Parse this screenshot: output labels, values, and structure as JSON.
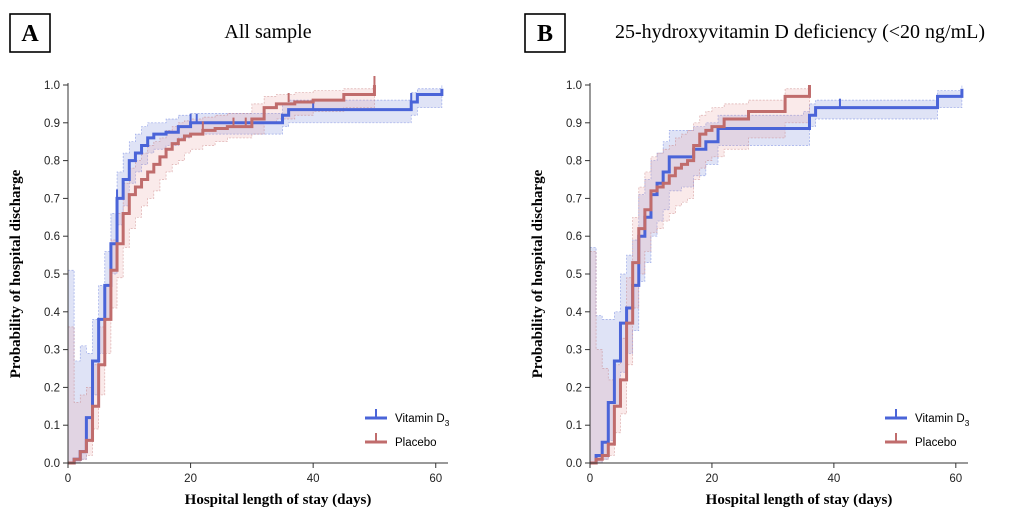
{
  "colors": {
    "vitamin": "#4a64d8",
    "placebo": "#c06c6c",
    "vitamin_band": "#6c7fd8",
    "placebo_band": "#e9a0a0"
  },
  "chart_data": [
    {
      "type": "line",
      "panel_letter": "A",
      "title": "All sample",
      "xlabel": "Hospital length of stay (days)",
      "ylabel": "Probability of hospital discharge",
      "xlim": [
        0,
        62
      ],
      "ylim": [
        0,
        1.0
      ],
      "xticks": [
        "0",
        "20",
        "40",
        "60"
      ],
      "yticks": [
        "0.0",
        "0.1",
        "0.2",
        "0.3",
        "0.4",
        "0.5",
        "0.6",
        "0.7",
        "0.8",
        "0.9",
        "1.0"
      ],
      "legend_position": "bottom-right",
      "series": [
        {
          "name_main": "Vitamin D",
          "name_sub": "3",
          "color_key": "vitamin",
          "x": [
            0,
            1,
            2,
            3,
            4,
            5,
            6,
            7,
            8,
            9,
            10,
            11,
            12,
            13,
            14,
            16,
            18,
            20,
            35,
            36,
            56,
            57,
            61
          ],
          "y": [
            0,
            0.01,
            0.03,
            0.12,
            0.27,
            0.38,
            0.47,
            0.58,
            0.7,
            0.75,
            0.8,
            0.82,
            0.84,
            0.86,
            0.87,
            0.875,
            0.89,
            0.9,
            0.92,
            0.935,
            0.955,
            0.975,
            0.99
          ],
          "lower": [
            0,
            0,
            0.01,
            0.06,
            0.18,
            0.29,
            0.38,
            0.5,
            0.63,
            0.68,
            0.74,
            0.77,
            0.79,
            0.82,
            0.83,
            0.84,
            0.86,
            0.87,
            0.89,
            0.9,
            0.92,
            0.94,
            0.96
          ],
          "upper": [
            0.51,
            0.27,
            0.31,
            0.29,
            0.38,
            0.47,
            0.56,
            0.66,
            0.77,
            0.82,
            0.85,
            0.87,
            0.89,
            0.9,
            0.9,
            0.91,
            0.92,
            0.925,
            0.95,
            0.96,
            0.98,
            0.99,
            1.0
          ],
          "censor_x": [
            8,
            20,
            21,
            40,
            56
          ],
          "censor_y": [
            0.7,
            0.9,
            0.9,
            0.935,
            0.955
          ]
        },
        {
          "name_main": "Placebo",
          "name_sub": "",
          "color_key": "placebo",
          "x": [
            0,
            1,
            2,
            3,
            4,
            5,
            6,
            7,
            8,
            9,
            10,
            11,
            12,
            13,
            14,
            15,
            16,
            17,
            18,
            19,
            20,
            22,
            24,
            26,
            30,
            32,
            34,
            37,
            40,
            45,
            50
          ],
          "y": [
            0,
            0.01,
            0.03,
            0.06,
            0.15,
            0.26,
            0.38,
            0.51,
            0.58,
            0.66,
            0.71,
            0.73,
            0.75,
            0.77,
            0.79,
            0.81,
            0.83,
            0.845,
            0.855,
            0.865,
            0.87,
            0.88,
            0.885,
            0.89,
            0.91,
            0.94,
            0.95,
            0.955,
            0.96,
            0.975,
            1.0
          ],
          "lower": [
            0,
            0,
            0.01,
            0.02,
            0.09,
            0.18,
            0.29,
            0.41,
            0.49,
            0.57,
            0.62,
            0.65,
            0.68,
            0.7,
            0.72,
            0.75,
            0.77,
            0.79,
            0.8,
            0.82,
            0.83,
            0.84,
            0.85,
            0.86,
            0.87,
            0.9,
            0.91,
            0.92,
            0.93,
            0.94,
            0.96
          ],
          "upper": [
            0.36,
            0.16,
            0.18,
            0.2,
            0.26,
            0.36,
            0.47,
            0.59,
            0.66,
            0.74,
            0.78,
            0.8,
            0.82,
            0.84,
            0.85,
            0.86,
            0.88,
            0.89,
            0.9,
            0.905,
            0.91,
            0.915,
            0.92,
            0.925,
            0.95,
            0.97,
            0.975,
            0.98,
            0.985,
            0.99,
            1.0
          ],
          "censor_x": [
            22,
            27,
            29,
            36,
            50
          ],
          "censor_y": [
            0.88,
            0.89,
            0.89,
            0.955,
            1.0
          ]
        }
      ]
    },
    {
      "type": "line",
      "panel_letter": "B",
      "title": "25-hydroxyvitamin D deficiency (<20 ng/mL)",
      "xlabel": "Hospital length of stay (days)",
      "ylabel": "Probability of hospital discharge",
      "xlim": [
        0,
        62
      ],
      "ylim": [
        0,
        1.0
      ],
      "xticks": [
        "0",
        "20",
        "40",
        "60"
      ],
      "yticks": [
        "0.0",
        "0.1",
        "0.2",
        "0.3",
        "0.4",
        "0.5",
        "0.6",
        "0.7",
        "0.8",
        "0.9",
        "1.0"
      ],
      "legend_position": "bottom-right",
      "series": [
        {
          "name_main": "Vitamin D",
          "name_sub": "3",
          "color_key": "vitamin",
          "x": [
            0,
            1,
            2,
            3,
            4,
            5,
            6,
            7,
            8,
            9,
            10,
            11,
            12,
            13,
            15,
            17,
            19,
            21,
            35,
            36,
            37,
            57,
            61
          ],
          "y": [
            0,
            0.02,
            0.055,
            0.16,
            0.27,
            0.37,
            0.41,
            0.47,
            0.6,
            0.65,
            0.71,
            0.74,
            0.77,
            0.81,
            0.81,
            0.83,
            0.85,
            0.885,
            0.885,
            0.92,
            0.94,
            0.97,
            0.99
          ],
          "lower": [
            0,
            0,
            0.01,
            0.06,
            0.15,
            0.24,
            0.29,
            0.35,
            0.48,
            0.53,
            0.6,
            0.64,
            0.67,
            0.72,
            0.73,
            0.76,
            0.79,
            0.84,
            0.84,
            0.89,
            0.91,
            0.94,
            0.96
          ],
          "upper": [
            0.57,
            0.39,
            0.38,
            0.38,
            0.4,
            0.5,
            0.55,
            0.59,
            0.71,
            0.75,
            0.8,
            0.82,
            0.85,
            0.88,
            0.88,
            0.89,
            0.9,
            0.92,
            0.93,
            0.95,
            0.96,
            0.985,
            1.0
          ],
          "censor_x": [
            41
          ],
          "censor_y": [
            0.94
          ]
        },
        {
          "name_main": "Placebo",
          "name_sub": "",
          "color_key": "placebo",
          "x": [
            0,
            1,
            2,
            3,
            4,
            5,
            6,
            7,
            8,
            9,
            10,
            11,
            12,
            13,
            14,
            15,
            16,
            17,
            18,
            19,
            20,
            22,
            26,
            32,
            36
          ],
          "y": [
            0,
            0.01,
            0.02,
            0.05,
            0.15,
            0.22,
            0.37,
            0.53,
            0.62,
            0.67,
            0.72,
            0.73,
            0.74,
            0.76,
            0.78,
            0.79,
            0.8,
            0.84,
            0.87,
            0.88,
            0.89,
            0.91,
            0.93,
            0.97,
            1.0
          ],
          "lower": [
            0,
            0,
            0.01,
            0.02,
            0.08,
            0.13,
            0.26,
            0.41,
            0.5,
            0.56,
            0.61,
            0.62,
            0.64,
            0.66,
            0.68,
            0.69,
            0.7,
            0.75,
            0.78,
            0.8,
            0.81,
            0.83,
            0.86,
            0.9,
            0.93
          ],
          "upper": [
            0.56,
            0.3,
            0.25,
            0.22,
            0.26,
            0.33,
            0.49,
            0.65,
            0.73,
            0.77,
            0.81,
            0.82,
            0.83,
            0.84,
            0.86,
            0.87,
            0.88,
            0.9,
            0.92,
            0.93,
            0.94,
            0.95,
            0.96,
            0.99,
            1.0
          ],
          "censor_x": [],
          "censor_y": []
        }
      ]
    }
  ]
}
